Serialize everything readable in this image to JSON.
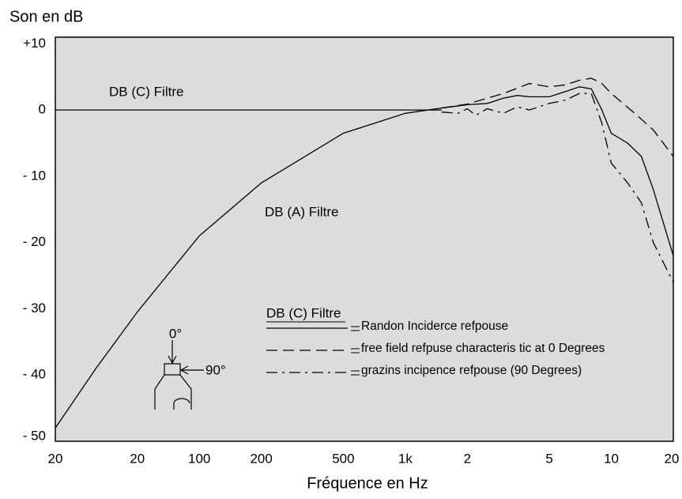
{
  "chart_data": {
    "type": "line",
    "ylabel": "Son en dB",
    "xlabel": "Fréquence en Hz",
    "xscale": "log",
    "xlim": [
      20,
      20000
    ],
    "ylim": [
      -50,
      11
    ],
    "xticks": [
      20,
      {
        "value": 50,
        "label": "20"
      },
      100,
      200,
      500,
      {
        "value": 1000,
        "label": "1k"
      },
      {
        "value": 2000,
        "label": "2"
      },
      {
        "value": 5000,
        "label": "5"
      },
      {
        "value": 10000,
        "label": "10"
      },
      {
        "value": 20000,
        "label": "20"
      }
    ],
    "yticks": [
      {
        "value": 10,
        "label": "+10"
      },
      0,
      {
        "value": -10,
        "label": "- 10"
      },
      {
        "value": -20,
        "label": "- 20"
      },
      {
        "value": -30,
        "label": "- 30"
      },
      {
        "value": -40,
        "label": "- 40"
      },
      {
        "value": -50,
        "label": "- 50"
      }
    ],
    "background": "#dcdcdc",
    "legend_title": "DB (C) Filtre",
    "annotations": [
      "0°",
      "90°"
    ],
    "series": [
      {
        "name": "DB (C) Filtre",
        "legend": false,
        "color": "#000000",
        "dash": "solid",
        "x": [
          20,
          1500
        ],
        "values": [
          0,
          0
        ]
      },
      {
        "name": "DB (A) Filtre",
        "legend": false,
        "color": "#000000",
        "dash": "solid",
        "x": [
          20,
          31.5,
          50,
          100,
          200,
          500,
          1000,
          1500,
          2000
        ],
        "values": [
          -48,
          -39,
          -30.5,
          -19,
          -11,
          -3.5,
          -0.5,
          0.3,
          0.8
        ]
      },
      {
        "name": "Randon Inciderce refpouse",
        "legend": true,
        "color": "#000000",
        "dash": "solid",
        "x": [
          1500,
          2000,
          2500,
          3000,
          3500,
          4000,
          5000,
          6000,
          7000,
          8000,
          9000,
          10000,
          12000,
          14000,
          16000,
          20000
        ],
        "values": [
          0.3,
          0.8,
          1.0,
          1.8,
          2.2,
          2.0,
          2.0,
          2.8,
          3.5,
          3.2,
          0,
          -3.5,
          -5,
          -7,
          -12,
          -22
        ]
      },
      {
        "name": "free field refpuse characteris tic at 0 Degrees",
        "legend": true,
        "color": "#000000",
        "dash": "dashed",
        "x": [
          1500,
          2000,
          3000,
          4000,
          5000,
          6000,
          7000,
          8000,
          9000,
          10000,
          13000,
          16000,
          20000
        ],
        "values": [
          0.3,
          0.9,
          2.5,
          4.0,
          3.5,
          3.8,
          4.5,
          4.8,
          4,
          2.5,
          -0.5,
          -3,
          -7
        ]
      },
      {
        "name": "grazins incipence refpouse (90 Degrees)",
        "legend": true,
        "color": "#000000",
        "dash": "dashdot",
        "x": [
          1500,
          1800,
          2000,
          2200,
          2500,
          3000,
          3500,
          4000,
          5000,
          6000,
          7000,
          8000,
          9000,
          10000,
          12000,
          14000,
          16000,
          20000
        ],
        "values": [
          -0.3,
          -0.5,
          0.2,
          -0.8,
          0.2,
          -0.5,
          0.5,
          0,
          1.0,
          1.5,
          2.5,
          2.5,
          -2,
          -8,
          -11,
          -14,
          -20,
          -26
        ]
      }
    ]
  }
}
